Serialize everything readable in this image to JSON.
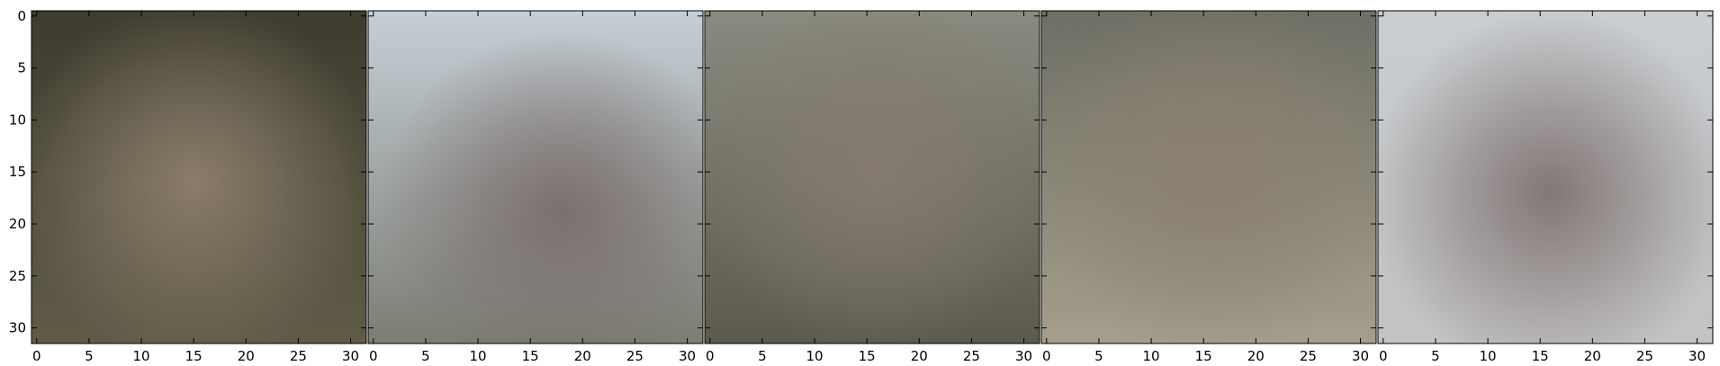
{
  "chart_data": [
    {
      "type": "heatmap",
      "title": "",
      "xlabel": "",
      "ylabel": "",
      "xlim": [
        -0.5,
        31.5
      ],
      "ylim": [
        31.5,
        -0.5
      ],
      "xticks": [
        "0",
        "5",
        "10",
        "15",
        "20",
        "25",
        "30"
      ],
      "yticks": [
        "0",
        "5",
        "10",
        "15",
        "20",
        "25",
        "30"
      ],
      "grid": false,
      "image": {
        "corner_top": "#3d3c2f",
        "corner_bottom": "#5f5b47",
        "center": "#8d7f6c",
        "center_at": [
          15,
          16
        ]
      }
    },
    {
      "type": "heatmap",
      "title": "",
      "xlabel": "",
      "ylabel": "",
      "xlim": [
        -0.5,
        31.5
      ],
      "ylim": [
        31.5,
        -0.5
      ],
      "xticks": [
        "0",
        "5",
        "10",
        "15",
        "20",
        "25",
        "30"
      ],
      "yticks": [],
      "grid": false,
      "image": {
        "corner_top": "#c5cfd6",
        "corner_bottom": "#7c7e74",
        "center": "#7a6e6c",
        "center_at": [
          18,
          19
        ]
      }
    },
    {
      "type": "heatmap",
      "title": "",
      "xlabel": "",
      "ylabel": "",
      "xlim": [
        -0.5,
        31.5
      ],
      "ylim": [
        31.5,
        -0.5
      ],
      "xticks": [
        "0",
        "5",
        "10",
        "15",
        "20",
        "25",
        "30"
      ],
      "yticks": [],
      "grid": false,
      "image": {
        "corner_top": "#8a8b80",
        "corner_bottom": "#5b5a4d",
        "center": "#857a70",
        "center_at": [
          16,
          15
        ]
      }
    },
    {
      "type": "heatmap",
      "title": "",
      "xlabel": "",
      "ylabel": "",
      "xlim": [
        -0.5,
        31.5
      ],
      "ylim": [
        31.5,
        -0.5
      ],
      "xticks": [
        "0",
        "5",
        "10",
        "15",
        "20",
        "25",
        "30"
      ],
      "yticks": [],
      "grid": false,
      "image": {
        "corner_top": "#6e6f65",
        "corner_bottom": "#a49e8b",
        "center": "#8c8070",
        "center_at": [
          16,
          15
        ]
      }
    },
    {
      "type": "heatmap",
      "title": "",
      "xlabel": "",
      "ylabel": "",
      "xlim": [
        -0.5,
        31.5
      ],
      "ylim": [
        31.5,
        -0.5
      ],
      "xticks": [
        "0",
        "5",
        "10",
        "15",
        "20",
        "25",
        "30"
      ],
      "yticks": [],
      "grid": false,
      "image": {
        "corner_top": "#c9ced2",
        "corner_bottom": "#c2c3c2",
        "center": "#7f7371",
        "center_at": [
          16,
          17
        ]
      }
    }
  ]
}
